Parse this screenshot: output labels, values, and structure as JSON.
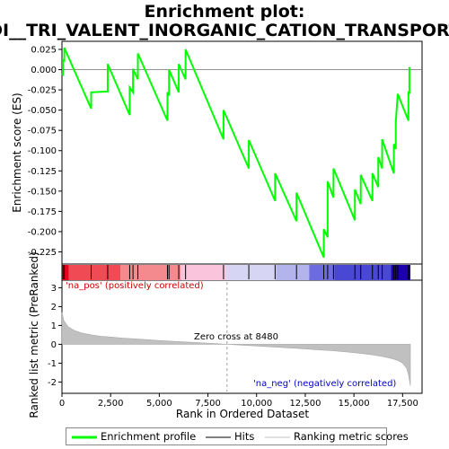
{
  "chart_data": {
    "type": "line",
    "title_line1": "Enrichment plot:",
    "title_line2": "DI__TRI_VALENT_INORGANIC_CATION_TRANSPORT",
    "xlabel": "Rank in Ordered Dataset",
    "ylabel_top": "Enrichment score (ES)",
    "ylabel_bottom": "Ranked list metric (PreRanked)",
    "x_range": [
      0,
      18500
    ],
    "x_ticks": [
      0,
      2500,
      5000,
      7500,
      10000,
      12500,
      15000,
      17500
    ],
    "x_tick_labels": [
      "0",
      "2,500",
      "5,000",
      "7,500",
      "10,000",
      "12,500",
      "15,000",
      "17,500"
    ],
    "es_range": [
      -0.24,
      0.035
    ],
    "es_ticks": [
      0.025,
      0.0,
      -0.025,
      -0.05,
      -0.075,
      -0.1,
      -0.125,
      -0.15,
      -0.175,
      -0.2,
      -0.225
    ],
    "es_tick_labels": [
      "0.025",
      "0.000",
      "-0.025",
      "-0.050",
      "-0.075",
      "-0.100",
      "-0.125",
      "-0.150",
      "-0.175",
      "-0.200",
      "-0.225"
    ],
    "metric_range": [
      -2.6,
      3.4
    ],
    "metric_ticks": [
      3,
      2,
      1,
      0,
      -1,
      -2
    ],
    "metric_tick_labels": [
      "3",
      "2",
      "1",
      "0",
      "-1",
      "-2"
    ],
    "hits": [
      50,
      120,
      1500,
      2350,
      3480,
      3650,
      3900,
      5420,
      5500,
      6000,
      6350,
      8300,
      9600,
      10950,
      12050,
      13450,
      13650,
      13950,
      15050,
      15350,
      15950,
      16250,
      16450,
      17050,
      17150,
      17250,
      17800,
      17850
    ],
    "es_series": {
      "name": "Enrichment profile",
      "x": [
        0,
        50,
        50,
        120,
        120,
        1500,
        1500,
        2350,
        2350,
        3480,
        3480,
        3650,
        3650,
        3900,
        3900,
        5420,
        5420,
        5500,
        5500,
        6000,
        6000,
        6350,
        6350,
        8300,
        8300,
        9600,
        9600,
        10950,
        10950,
        12050,
        12050,
        13450,
        13450,
        13650,
        13650,
        13950,
        13950,
        15050,
        15050,
        15350,
        15350,
        15950,
        15950,
        16250,
        16250,
        16450,
        16450,
        17050,
        17050,
        17150,
        17150,
        17250,
        17250,
        17800,
        17800,
        17850,
        17850,
        17900
      ],
      "y": [
        -0.005,
        -0.006,
        0.012,
        0.011,
        0.027,
        -0.048,
        -0.028,
        -0.027,
        0.007,
        -0.056,
        -0.022,
        -0.028,
        0.001,
        -0.012,
        0.02,
        -0.063,
        -0.028,
        -0.032,
        0.0,
        -0.028,
        0.007,
        -0.012,
        0.025,
        -0.086,
        -0.05,
        -0.122,
        -0.087,
        -0.162,
        -0.128,
        -0.187,
        -0.152,
        -0.232,
        -0.197,
        -0.207,
        -0.138,
        -0.158,
        -0.122,
        -0.186,
        -0.148,
        -0.166,
        -0.13,
        -0.162,
        -0.128,
        -0.145,
        -0.108,
        -0.122,
        -0.086,
        -0.128,
        -0.092,
        -0.098,
        -0.065,
        -0.03,
        -0.03,
        -0.063,
        -0.027,
        -0.03,
        0.002,
        0.002
      ]
    },
    "metric_series": {
      "name": "Ranking metric scores",
      "x": [
        0,
        100,
        300,
        600,
        1000,
        1500,
        2000,
        3000,
        4000,
        5000,
        6000,
        7000,
        8000,
        8480,
        9000,
        10000,
        11000,
        12000,
        13000,
        14000,
        15000,
        15500,
        16000,
        16500,
        17000,
        17300,
        17500,
        17700,
        17800,
        17900
      ],
      "y": [
        1.7,
        1.25,
        0.95,
        0.75,
        0.6,
        0.5,
        0.43,
        0.34,
        0.27,
        0.2,
        0.14,
        0.09,
        0.03,
        0.0,
        -0.03,
        -0.09,
        -0.15,
        -0.21,
        -0.28,
        -0.35,
        -0.44,
        -0.5,
        -0.57,
        -0.65,
        -0.77,
        -0.88,
        -1.0,
        -1.25,
        -1.6,
        -2.2
      ]
    },
    "bands": [
      {
        "x0": 0,
        "x1": 350,
        "color": "#e8001e"
      },
      {
        "x0": 350,
        "x1": 3000,
        "color": "#f04a54"
      },
      {
        "x0": 3000,
        "x1": 6100,
        "color": "#f48a8e"
      },
      {
        "x0": 6100,
        "x1": 8400,
        "color": "#fac4dc"
      },
      {
        "x0": 8400,
        "x1": 11000,
        "color": "#d6d6f4"
      },
      {
        "x0": 11000,
        "x1": 12700,
        "color": "#b4b4ec"
      },
      {
        "x0": 12700,
        "x1": 14000,
        "color": "#6c6ce0"
      },
      {
        "x0": 14000,
        "x1": 16900,
        "color": "#4848d4"
      },
      {
        "x0": 16900,
        "x1": 17900,
        "color": "#1c00b0"
      }
    ],
    "annotations": {
      "pos_label": "'na_pos' (positively correlated)",
      "neg_label": "'na_neg' (negatively correlated)",
      "zero_cross": "Zero cross at 8480",
      "zero_cross_rank": 8480
    },
    "colors": {
      "es_line": "#00ff00",
      "hit_line": "#000000",
      "metric_fill": "#c0c0c0",
      "pos_text": "#cc0000",
      "neg_text": "#0000cc"
    }
  },
  "legend": {
    "items": [
      {
        "label": "Enrichment profile"
      },
      {
        "label": "Hits"
      },
      {
        "label": "Ranking metric scores"
      }
    ]
  }
}
